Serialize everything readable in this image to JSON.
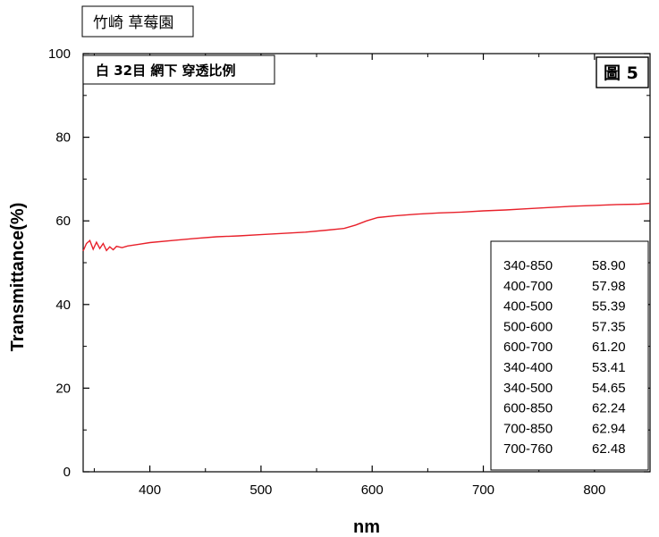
{
  "header_label": "竹崎 草莓園",
  "chart_data": {
    "type": "line",
    "title": "白 32目 網下 穿透比例",
    "figure_label": "圖 5",
    "xlabel": "nm",
    "ylabel": "Transmittance(%)",
    "xlim": [
      340,
      850
    ],
    "ylim": [
      0,
      100
    ],
    "x_ticks": [
      400,
      500,
      600,
      700,
      800
    ],
    "y_ticks": [
      0,
      20,
      40,
      60,
      80,
      100
    ],
    "grid": false,
    "line_color": "#e8202a",
    "series": [
      {
        "x": [
          340,
          343,
          346,
          349,
          352,
          355,
          358,
          361,
          364,
          367,
          370,
          375,
          380,
          390,
          400,
          420,
          440,
          460,
          480,
          500,
          520,
          540,
          560,
          575,
          585,
          595,
          605,
          620,
          640,
          660,
          680,
          700,
          720,
          740,
          760,
          780,
          800,
          820,
          840,
          850
        ],
        "y": [
          52.8,
          54.6,
          55.3,
          53.2,
          54.9,
          53.4,
          54.6,
          52.9,
          53.8,
          53.1,
          53.9,
          53.6,
          54.0,
          54.4,
          54.8,
          55.3,
          55.8,
          56.2,
          56.4,
          56.7,
          57.0,
          57.3,
          57.8,
          58.2,
          59.0,
          60.0,
          60.8,
          61.2,
          61.6,
          61.9,
          62.1,
          62.4,
          62.6,
          62.9,
          63.2,
          63.5,
          63.7,
          63.9,
          64.0,
          64.2
        ]
      }
    ],
    "summary_table": [
      {
        "range": "340-850",
        "value": "58.90"
      },
      {
        "range": "400-700",
        "value": "57.98"
      },
      {
        "range": "400-500",
        "value": "55.39"
      },
      {
        "range": "500-600",
        "value": "57.35"
      },
      {
        "range": "600-700",
        "value": "61.20"
      },
      {
        "range": "340-400",
        "value": "53.41"
      },
      {
        "range": "340-500",
        "value": "54.65"
      },
      {
        "range": "600-850",
        "value": "62.24"
      },
      {
        "range": "700-850",
        "value": "62.94"
      },
      {
        "range": "700-760",
        "value": "62.48"
      }
    ]
  }
}
